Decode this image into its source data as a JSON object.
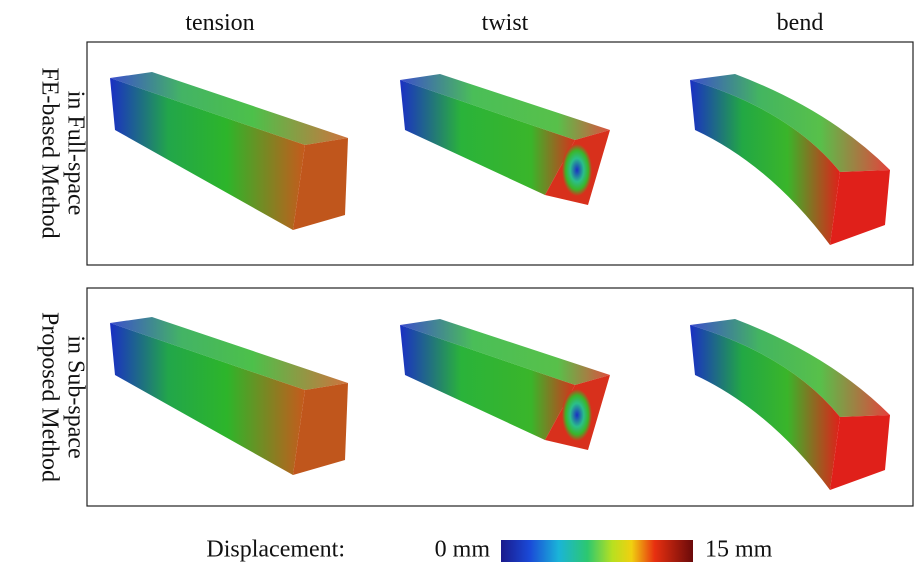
{
  "columns": [
    "tension",
    "twist",
    "bend"
  ],
  "rows": [
    {
      "label_lines": [
        "FE-based Method",
        "in Full-space"
      ]
    },
    {
      "label_lines": [
        "Proposed Method",
        "in Sub-space"
      ]
    }
  ],
  "colorbar": {
    "label": "Displacement:",
    "min_label": "0 mm",
    "max_label": "15 mm"
  }
}
